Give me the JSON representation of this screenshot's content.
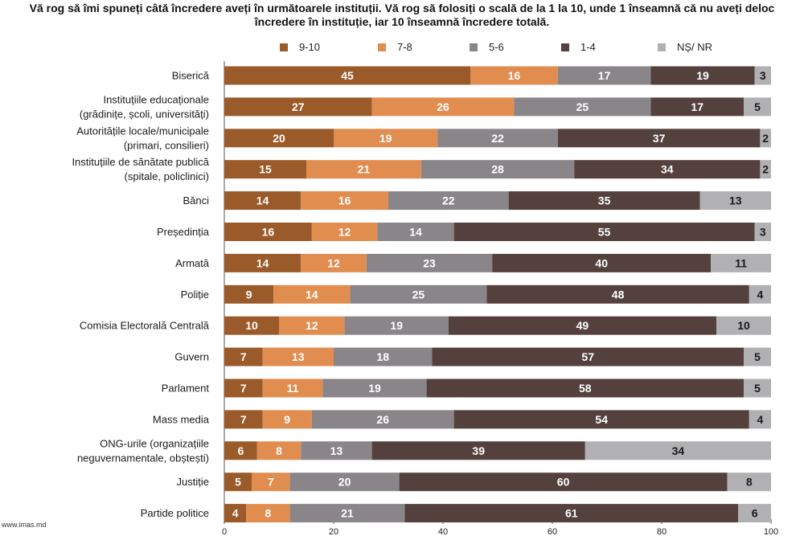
{
  "title_lines": [
    "Vă rog să îmi spuneți câtă încredere aveți în următoarele instituții. Vă rog să folosiți o scală de la 1 la 10, unde 1 înseamnă că nu aveți deloc",
    "încredere în instituție, iar 10 înseamnă încredere totală."
  ],
  "source": "www.imas.md",
  "colors": {
    "9-10": "#9b5a2a",
    "7-8": "#e08d4f",
    "5-6": "#8a8589",
    "1-4": "#54413e",
    "NS/NR": "#b1b1b3"
  },
  "chart_data": {
    "type": "bar",
    "orientation": "horizontal",
    "stacked": true,
    "title": "Vă rog să îmi spuneți câtă încredere aveți în următoarele instituții. Vă rog să folosiți o scală de la 1 la 10, unde 1 înseamnă că nu aveți deloc încredere în instituție, iar 10 înseamnă încredere totală.",
    "xlim": [
      0,
      100
    ],
    "xticks": [
      0,
      20,
      40,
      60,
      80,
      100
    ],
    "legend_position": "top",
    "categories": [
      [
        "Biserică"
      ],
      [
        "Instituțiile educaționale",
        "(grădinițe, școli, universități)"
      ],
      [
        "Autoritățile locale/municipale",
        "(primari, consilieri)"
      ],
      [
        "Instituțiile de sănătate publică",
        "(spitale, policlinici)"
      ],
      [
        "Bănci"
      ],
      [
        "Președinția"
      ],
      [
        "Armată"
      ],
      [
        "Poliție"
      ],
      [
        "Comisia Electorală Centrală"
      ],
      [
        "Guvern"
      ],
      [
        "Parlament"
      ],
      [
        "Mass media"
      ],
      [
        "ONG-urile (organizațiile",
        "neguvernamentale, obștești)"
      ],
      [
        "Justiție"
      ],
      [
        "Partide politice"
      ]
    ],
    "series": [
      {
        "name": "9-10",
        "key": "9-10",
        "label_color": "#ffffff",
        "values": [
          45,
          27,
          20,
          15,
          14,
          16,
          14,
          9,
          10,
          7,
          7,
          7,
          6,
          5,
          4
        ]
      },
      {
        "name": "7-8",
        "key": "7-8",
        "label_color": "#ffffff",
        "values": [
          16,
          26,
          19,
          21,
          16,
          12,
          12,
          14,
          12,
          13,
          11,
          9,
          8,
          7,
          8
        ]
      },
      {
        "name": "5-6",
        "key": "5-6",
        "label_color": "#ffffff",
        "values": [
          17,
          25,
          22,
          28,
          22,
          14,
          23,
          25,
          19,
          18,
          19,
          26,
          13,
          20,
          21
        ]
      },
      {
        "name": "1-4",
        "key": "1-4",
        "label_color": "#ffffff",
        "values": [
          19,
          17,
          37,
          34,
          35,
          55,
          40,
          48,
          49,
          57,
          58,
          54,
          39,
          60,
          61
        ]
      },
      {
        "name": "NȘ/ NR",
        "key": "NS/NR",
        "label_color": "#1a1a1a",
        "values": [
          3,
          5,
          2,
          2,
          13,
          3,
          11,
          4,
          10,
          5,
          5,
          4,
          34,
          8,
          6
        ]
      }
    ]
  }
}
